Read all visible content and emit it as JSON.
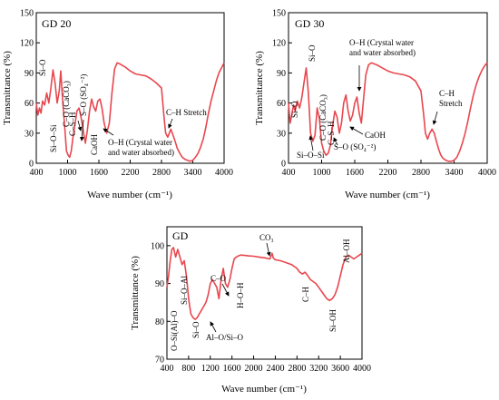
{
  "chart_data": [
    {
      "type": "line",
      "panel_label": "GD 20",
      "xlabel": "Wave number (cm⁻¹)",
      "ylabel": "Transmittance  (%)",
      "xlim": [
        400,
        4000
      ],
      "ylim": [
        0,
        150
      ],
      "xticks": [
        "400",
        "1000",
        "1600",
        "2200",
        "2800",
        "3400",
        "4000"
      ],
      "yticks": [
        "0",
        "30",
        "60",
        "90",
        "120",
        "150"
      ],
      "grid": false,
      "series": [
        {
          "color": "#e8474f",
          "x": [
            400,
            430,
            460,
            490,
            520,
            560,
            600,
            640,
            680,
            720,
            760,
            800,
            840,
            870,
            900,
            940,
            980,
            1010,
            1040,
            1070,
            1100,
            1140,
            1180,
            1220,
            1260,
            1300,
            1340,
            1380,
            1420,
            1460,
            1500,
            1540,
            1580,
            1620,
            1660,
            1700,
            1750,
            1800,
            1850,
            1900,
            1950,
            2000,
            2100,
            2200,
            2300,
            2400,
            2500,
            2600,
            2700,
            2800,
            2850,
            2880,
            2920,
            2950,
            2980,
            3020,
            3060,
            3100,
            3150,
            3200,
            3250,
            3300,
            3350,
            3400,
            3450,
            3500,
            3550,
            3600,
            3650,
            3700,
            3750,
            3800,
            3850,
            3900,
            3950,
            4000
          ],
          "y": [
            60,
            48,
            55,
            50,
            62,
            58,
            70,
            60,
            75,
            93,
            80,
            60,
            72,
            92,
            66,
            40,
            12,
            8,
            6,
            12,
            25,
            38,
            52,
            55,
            45,
            32,
            20,
            33,
            52,
            64,
            56,
            52,
            62,
            64,
            55,
            40,
            30,
            40,
            70,
            94,
            100,
            99,
            96,
            92,
            89,
            88,
            87,
            84,
            80,
            75,
            45,
            30,
            26,
            30,
            34,
            28,
            22,
            15,
            10,
            6,
            4,
            3,
            2,
            3,
            6,
            10,
            16,
            24,
            36,
            50,
            62,
            72,
            82,
            90,
            95,
            100
          ]
        }
      ],
      "annotations": [
        "Si–O",
        "Si–O–Si",
        "C–O (CaCO₃)",
        "C–S–H",
        "S–O (SO₄⁻²)",
        "CaOH",
        "O–H (Crystal water\nand water absorbed)",
        "C–H Stretch"
      ]
    },
    {
      "type": "line",
      "panel_label": "GD 30",
      "xlabel": "Wave number (cm⁻¹)",
      "ylabel": "Transmittance  (%)",
      "xlim": [
        400,
        4000
      ],
      "ylim": [
        0,
        150
      ],
      "xticks": [
        "400",
        "1000",
        "1600",
        "2200",
        "2800",
        "3400",
        "4000"
      ],
      "yticks": [
        "0",
        "30",
        "60",
        "90",
        "120",
        "150"
      ],
      "grid": false,
      "series": [
        {
          "color": "#e8474f",
          "x": [
            400,
            430,
            460,
            490,
            520,
            560,
            600,
            640,
            680,
            720,
            760,
            800,
            840,
            880,
            920,
            960,
            1000,
            1040,
            1080,
            1120,
            1160,
            1200,
            1240,
            1280,
            1320,
            1360,
            1400,
            1440,
            1480,
            1520,
            1560,
            1600,
            1640,
            1680,
            1720,
            1760,
            1800,
            1850,
            1900,
            1950,
            2000,
            2100,
            2200,
            2300,
            2400,
            2500,
            2600,
            2700,
            2800,
            2850,
            2880,
            2920,
            2960,
            3000,
            3040,
            3080,
            3120,
            3160,
            3200,
            3250,
            3300,
            3350,
            3400,
            3450,
            3500,
            3550,
            3600,
            3650,
            3700,
            3750,
            3800,
            3850,
            3900,
            3950,
            4000
          ],
          "y": [
            60,
            40,
            48,
            58,
            52,
            62,
            55,
            65,
            80,
            95,
            70,
            30,
            22,
            28,
            55,
            44,
            20,
            12,
            8,
            10,
            18,
            38,
            52,
            46,
            30,
            40,
            60,
            68,
            52,
            42,
            48,
            60,
            66,
            50,
            40,
            64,
            88,
            98,
            100,
            99,
            98,
            95,
            92,
            90,
            89,
            88,
            86,
            82,
            72,
            48,
            30,
            24,
            30,
            34,
            30,
            22,
            14,
            8,
            5,
            3,
            2,
            2,
            3,
            6,
            12,
            20,
            30,
            42,
            56,
            68,
            78,
            86,
            92,
            97,
            100
          ]
        }
      ],
      "annotations": [
        "Si–O",
        "Si–O–Si",
        "C–O (CaCO₃)",
        "C–S–H",
        "S–O (SO₄⁻²)",
        "CaOH",
        "O–H (Crystal water\nand water absorbed)",
        "C–H\nStretch"
      ]
    },
    {
      "type": "line",
      "panel_label": "GD",
      "xlabel": "Wave number (cm⁻¹)",
      "ylabel": "Transmittance  (%)",
      "xlim": [
        400,
        4000
      ],
      "ylim": [
        70,
        105
      ],
      "xticks": [
        "400",
        "800",
        "1200",
        "1600",
        "2000",
        "2400",
        "2800",
        "3200",
        "3600",
        "4000"
      ],
      "yticks": [
        "70",
        "80",
        "90",
        "100"
      ],
      "grid": false,
      "series": [
        {
          "color": "#e8474f",
          "x": [
            400,
            430,
            460,
            490,
            520,
            560,
            600,
            640,
            680,
            720,
            760,
            800,
            840,
            880,
            920,
            960,
            1000,
            1040,
            1080,
            1120,
            1160,
            1200,
            1240,
            1280,
            1320,
            1360,
            1400,
            1440,
            1480,
            1520,
            1560,
            1600,
            1640,
            1680,
            1720,
            1760,
            1800,
            1900,
            2000,
            2100,
            2200,
            2300,
            2340,
            2360,
            2380,
            2400,
            2500,
            2600,
            2700,
            2800,
            2850,
            2900,
            2950,
            3000,
            3050,
            3100,
            3150,
            3200,
            3250,
            3300,
            3350,
            3400,
            3450,
            3500,
            3550,
            3600,
            3650,
            3700,
            3750,
            3800,
            3850,
            3900,
            3950,
            4000
          ],
          "y": [
            89,
            92,
            96,
            99,
            99.5,
            97,
            99,
            97,
            95,
            96,
            92,
            86,
            82,
            81,
            80.5,
            81,
            82,
            83,
            84,
            85,
            87,
            90,
            91,
            90,
            89,
            86,
            91,
            94,
            90,
            89,
            91,
            94,
            96.5,
            97,
            97.3,
            97.5,
            97.5,
            97.3,
            97.2,
            97,
            96.8,
            96.5,
            98,
            96.8,
            96.5,
            96.3,
            96,
            95.5,
            95,
            94,
            93,
            92.5,
            93,
            92,
            91,
            90.5,
            90,
            89,
            88,
            87,
            86,
            85.5,
            86,
            87,
            89,
            92,
            95,
            97,
            97.5,
            97,
            96.5,
            97,
            97.5,
            98
          ]
        }
      ],
      "annotations": [
        "O–Si(Al)–O",
        "Si–O–Al",
        "Si–O",
        "Al–O/Si–O",
        "C–O",
        "H–O–H",
        "CO₃",
        "C–H",
        "Si–OH",
        "Al–OH"
      ]
    }
  ]
}
